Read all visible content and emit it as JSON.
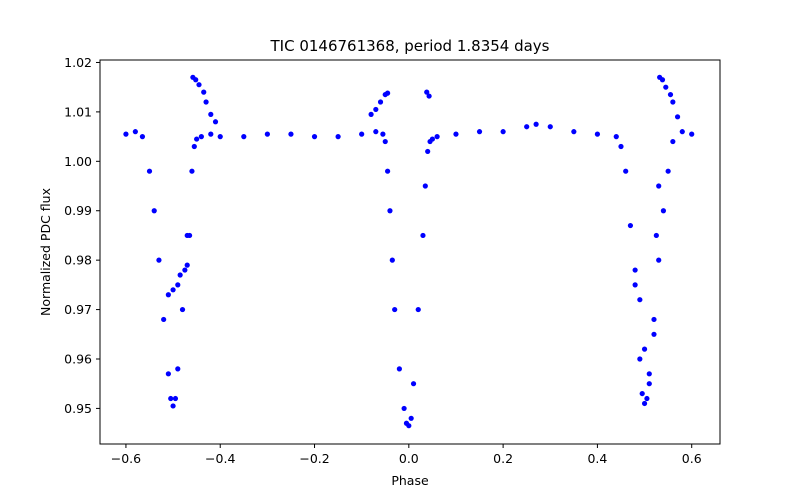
{
  "chart_data": {
    "type": "scatter",
    "title": "TIC 0146761368, period 1.8354 days",
    "xlabel": "Phase",
    "ylabel": "Normalized PDC flux",
    "xlim": [
      -0.655,
      0.66
    ],
    "ylim": [
      0.9428,
      1.0205
    ],
    "xticks": [
      -0.6,
      -0.4,
      -0.2,
      0.0,
      0.2,
      0.4,
      0.6
    ],
    "xtick_labels": [
      "−0.6",
      "−0.4",
      "−0.2",
      "0.0",
      "0.2",
      "0.4",
      "0.6"
    ],
    "yticks": [
      0.95,
      0.96,
      0.97,
      0.98,
      0.99,
      1.0,
      1.01,
      1.02
    ],
    "ytick_labels": [
      "0.95",
      "0.96",
      "0.97",
      "0.98",
      "0.99",
      "1.00",
      "1.01",
      "1.02"
    ],
    "grid": false,
    "marker_color": "#0000ff",
    "series": [
      {
        "x": [
          -0.6,
          -0.58,
          -0.565,
          -0.55,
          -0.54,
          -0.53,
          -0.52,
          -0.51,
          -0.505,
          -0.5,
          -0.495,
          -0.49,
          -0.48,
          -0.47,
          -0.46,
          -0.455,
          -0.45,
          -0.44,
          -0.42,
          -0.4,
          -0.35,
          -0.3,
          -0.25,
          -0.2,
          -0.15,
          -0.1,
          -0.07,
          -0.055,
          -0.05,
          -0.045,
          -0.04,
          -0.035,
          -0.03,
          -0.02,
          -0.01,
          -0.005,
          0.0,
          0.005,
          0.01,
          0.02,
          0.03,
          0.035,
          0.04,
          0.045,
          0.05,
          0.06,
          0.1,
          0.15,
          0.2,
          0.25,
          0.27,
          0.3,
          0.35,
          0.4,
          0.44,
          0.45,
          0.46,
          0.47,
          0.48,
          0.49,
          0.495,
          0.5,
          0.505,
          0.51,
          0.52,
          0.53,
          0.54,
          0.55,
          0.56,
          0.58,
          0.6
        ],
        "y": [
          1.0055,
          1.006,
          1.005,
          0.998,
          0.99,
          0.98,
          0.968,
          0.957,
          0.952,
          0.9505,
          0.952,
          0.958,
          0.97,
          0.985,
          0.998,
          1.003,
          1.0045,
          1.005,
          1.0055,
          1.005,
          1.005,
          1.0055,
          1.0055,
          1.005,
          1.005,
          1.0055,
          1.006,
          1.0055,
          1.004,
          0.998,
          0.99,
          0.98,
          0.97,
          0.958,
          0.95,
          0.947,
          0.9465,
          0.948,
          0.955,
          0.97,
          0.985,
          0.995,
          1.002,
          1.004,
          1.0045,
          1.005,
          1.0055,
          1.006,
          1.006,
          1.007,
          1.0075,
          1.007,
          1.006,
          1.0055,
          1.005,
          1.003,
          0.998,
          0.987,
          0.975,
          0.96,
          0.953,
          0.951,
          0.952,
          0.957,
          0.968,
          0.98,
          0.99,
          0.998,
          1.004,
          1.006,
          1.0055
        ]
      },
      {
        "x": [
          -0.458,
          -0.452,
          -0.445,
          -0.435,
          -0.43,
          -0.42,
          -0.41,
          -0.08,
          -0.07,
          -0.06,
          -0.05,
          -0.045,
          0.038,
          0.043,
          0.532,
          0.538,
          0.545,
          0.555,
          0.56,
          0.57
        ],
        "y": [
          1.017,
          1.0165,
          1.0155,
          1.014,
          1.012,
          1.0095,
          1.008,
          1.0095,
          1.0105,
          1.012,
          1.0135,
          1.0138,
          1.014,
          1.0132,
          1.017,
          1.0165,
          1.015,
          1.0135,
          1.012,
          1.009
        ]
      },
      {
        "x": [
          -0.51,
          -0.5,
          -0.49,
          -0.485,
          -0.475,
          -0.47,
          -0.465,
          0.48,
          0.49,
          0.5,
          0.51,
          0.52,
          0.525,
          0.53
        ],
        "y": [
          0.973,
          0.974,
          0.975,
          0.977,
          0.978,
          0.979,
          0.985,
          0.978,
          0.972,
          0.962,
          0.955,
          0.965,
          0.985,
          0.995
        ]
      }
    ]
  }
}
